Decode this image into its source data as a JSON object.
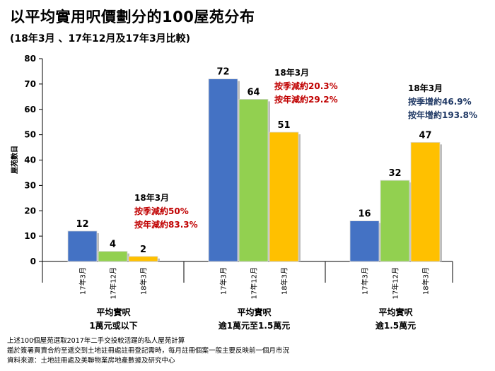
{
  "title": "以平均實用呎價劃分的100屋苑分布",
  "subtitle": "(18年3月 、17年12月及17年3月比較)",
  "chart_data": {
    "type": "bar",
    "ylabel": "屋苑數目",
    "ylim": [
      0,
      80
    ],
    "yticks": [
      0,
      10,
      20,
      30,
      40,
      50,
      60,
      70,
      80
    ],
    "grid": false,
    "legend": "none",
    "series_labels": [
      "17年3月",
      "17年12月",
      "18年3月"
    ],
    "groups": [
      {
        "label_line1": "平均實呎",
        "label_line2": "1萬元或以下",
        "values": [
          12,
          4,
          2
        ],
        "annotation": {
          "header": "18年3月",
          "line1": "按季減約50%",
          "line2": "按年減約83.3%"
        }
      },
      {
        "label_line1": "平均實呎",
        "label_line2": "逾1萬元至1.5萬元",
        "values": [
          72,
          64,
          51
        ],
        "annotation": {
          "header": "18年3月",
          "line1": "按季減約20.3%",
          "line2": "按年減約29.2%"
        }
      },
      {
        "label_line1": "平均實呎",
        "label_line2": "逾1.5萬元",
        "values": [
          16,
          32,
          47
        ],
        "annotation": {
          "header": "18年3月",
          "line1": "按季增約46.9%",
          "line2": "按年增約193.8%"
        }
      }
    ],
    "colors": {
      "bars": [
        "#4472c4",
        "#92d050",
        "#ffc000"
      ],
      "decrease": "#c00000",
      "increase": "#1f3864"
    }
  },
  "notes": {
    "line1": "上述100個屋苑選取2017年二手交投較活躍的私人屋苑計算",
    "line2": "鑑於簽署買賣合約至遞交到土地註冊處註冊登記需時，每月註冊個案一般主要反映前一個月市況",
    "line3": "資料來源：土地註冊處及美聯物業房地產數據及研究中心"
  }
}
